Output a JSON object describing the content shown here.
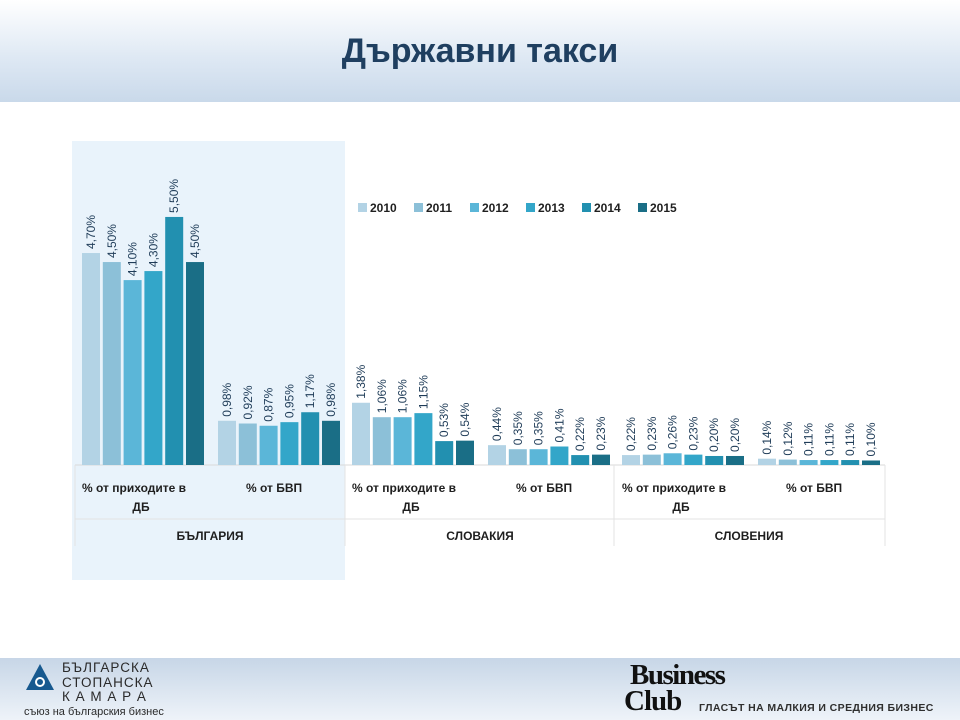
{
  "page": {
    "title": "Държавни такси"
  },
  "footer": {
    "left_logo_lines": [
      "БЪЛГАРСКА",
      "СТОПАНСКА",
      "К А М А Р А"
    ],
    "left_logo_sub": "съюз на българския бизнес",
    "right_logo_line1": "Business",
    "right_logo_line2": "Club",
    "right_tagline": "ГЛАСЪТ НА МАЛКИЯ И СРЕДНИЯ БИЗНЕС"
  },
  "chart_data": {
    "type": "bar",
    "title": "",
    "legend_position": "top-right",
    "grid": false,
    "ylim": [
      0,
      5.5
    ],
    "groups": [
      {
        "country": "БЪЛГАРИЯ",
        "categories": [
          {
            "label": [
              "% от приходите в",
              "ДБ"
            ],
            "values": [
              4.7,
              4.5,
              4.1,
              4.3,
              5.5,
              4.5
            ],
            "labels": [
              "4,70%",
              "4,50%",
              "4,10%",
              "4,30%",
              "5,50%",
              "4,50%"
            ]
          },
          {
            "label": [
              "% от БВП"
            ],
            "values": [
              0.98,
              0.92,
              0.87,
              0.95,
              1.17,
              0.98
            ],
            "labels": [
              "0,98%",
              "0,92%",
              "0,87%",
              "0,95%",
              "1,17%",
              "0,98%"
            ]
          }
        ]
      },
      {
        "country": "СЛОВАКИЯ",
        "categories": [
          {
            "label": [
              "% от приходите в",
              "ДБ"
            ],
            "values": [
              1.38,
              1.06,
              1.06,
              1.15,
              0.53,
              0.54
            ],
            "labels": [
              "1,38%",
              "1,06%",
              "1,06%",
              "1,15%",
              "0,53%",
              "0,54%"
            ]
          },
          {
            "label": [
              "% от БВП"
            ],
            "values": [
              0.44,
              0.35,
              0.35,
              0.41,
              0.22,
              0.23
            ],
            "labels": [
              "0,44%",
              "0,35%",
              "0,35%",
              "0,41%",
              "0,22%",
              "0,23%"
            ]
          }
        ]
      },
      {
        "country": "СЛОВЕНИЯ",
        "categories": [
          {
            "label": [
              "% от приходите в",
              "ДБ"
            ],
            "values": [
              0.22,
              0.23,
              0.26,
              0.23,
              0.2,
              0.2
            ],
            "labels": [
              "0,22%",
              "0,23%",
              "0,26%",
              "0,23%",
              "0,20%",
              "0,20%"
            ]
          },
          {
            "label": [
              "% от БВП"
            ],
            "values": [
              0.14,
              0.12,
              0.11,
              0.11,
              0.11,
              0.1
            ],
            "labels": [
              "0,14%",
              "0,12%",
              "0,11%",
              "0,11%",
              "0,11%",
              "0,10%"
            ]
          }
        ]
      }
    ],
    "series": [
      {
        "name": "2010",
        "color": "#b3d3e5"
      },
      {
        "name": "2011",
        "color": "#8cc0d8"
      },
      {
        "name": "2012",
        "color": "#5bb6d8"
      },
      {
        "name": "2013",
        "color": "#33a6c9"
      },
      {
        "name": "2014",
        "color": "#2290b0"
      },
      {
        "name": "2015",
        "color": "#1a6e86"
      }
    ]
  }
}
